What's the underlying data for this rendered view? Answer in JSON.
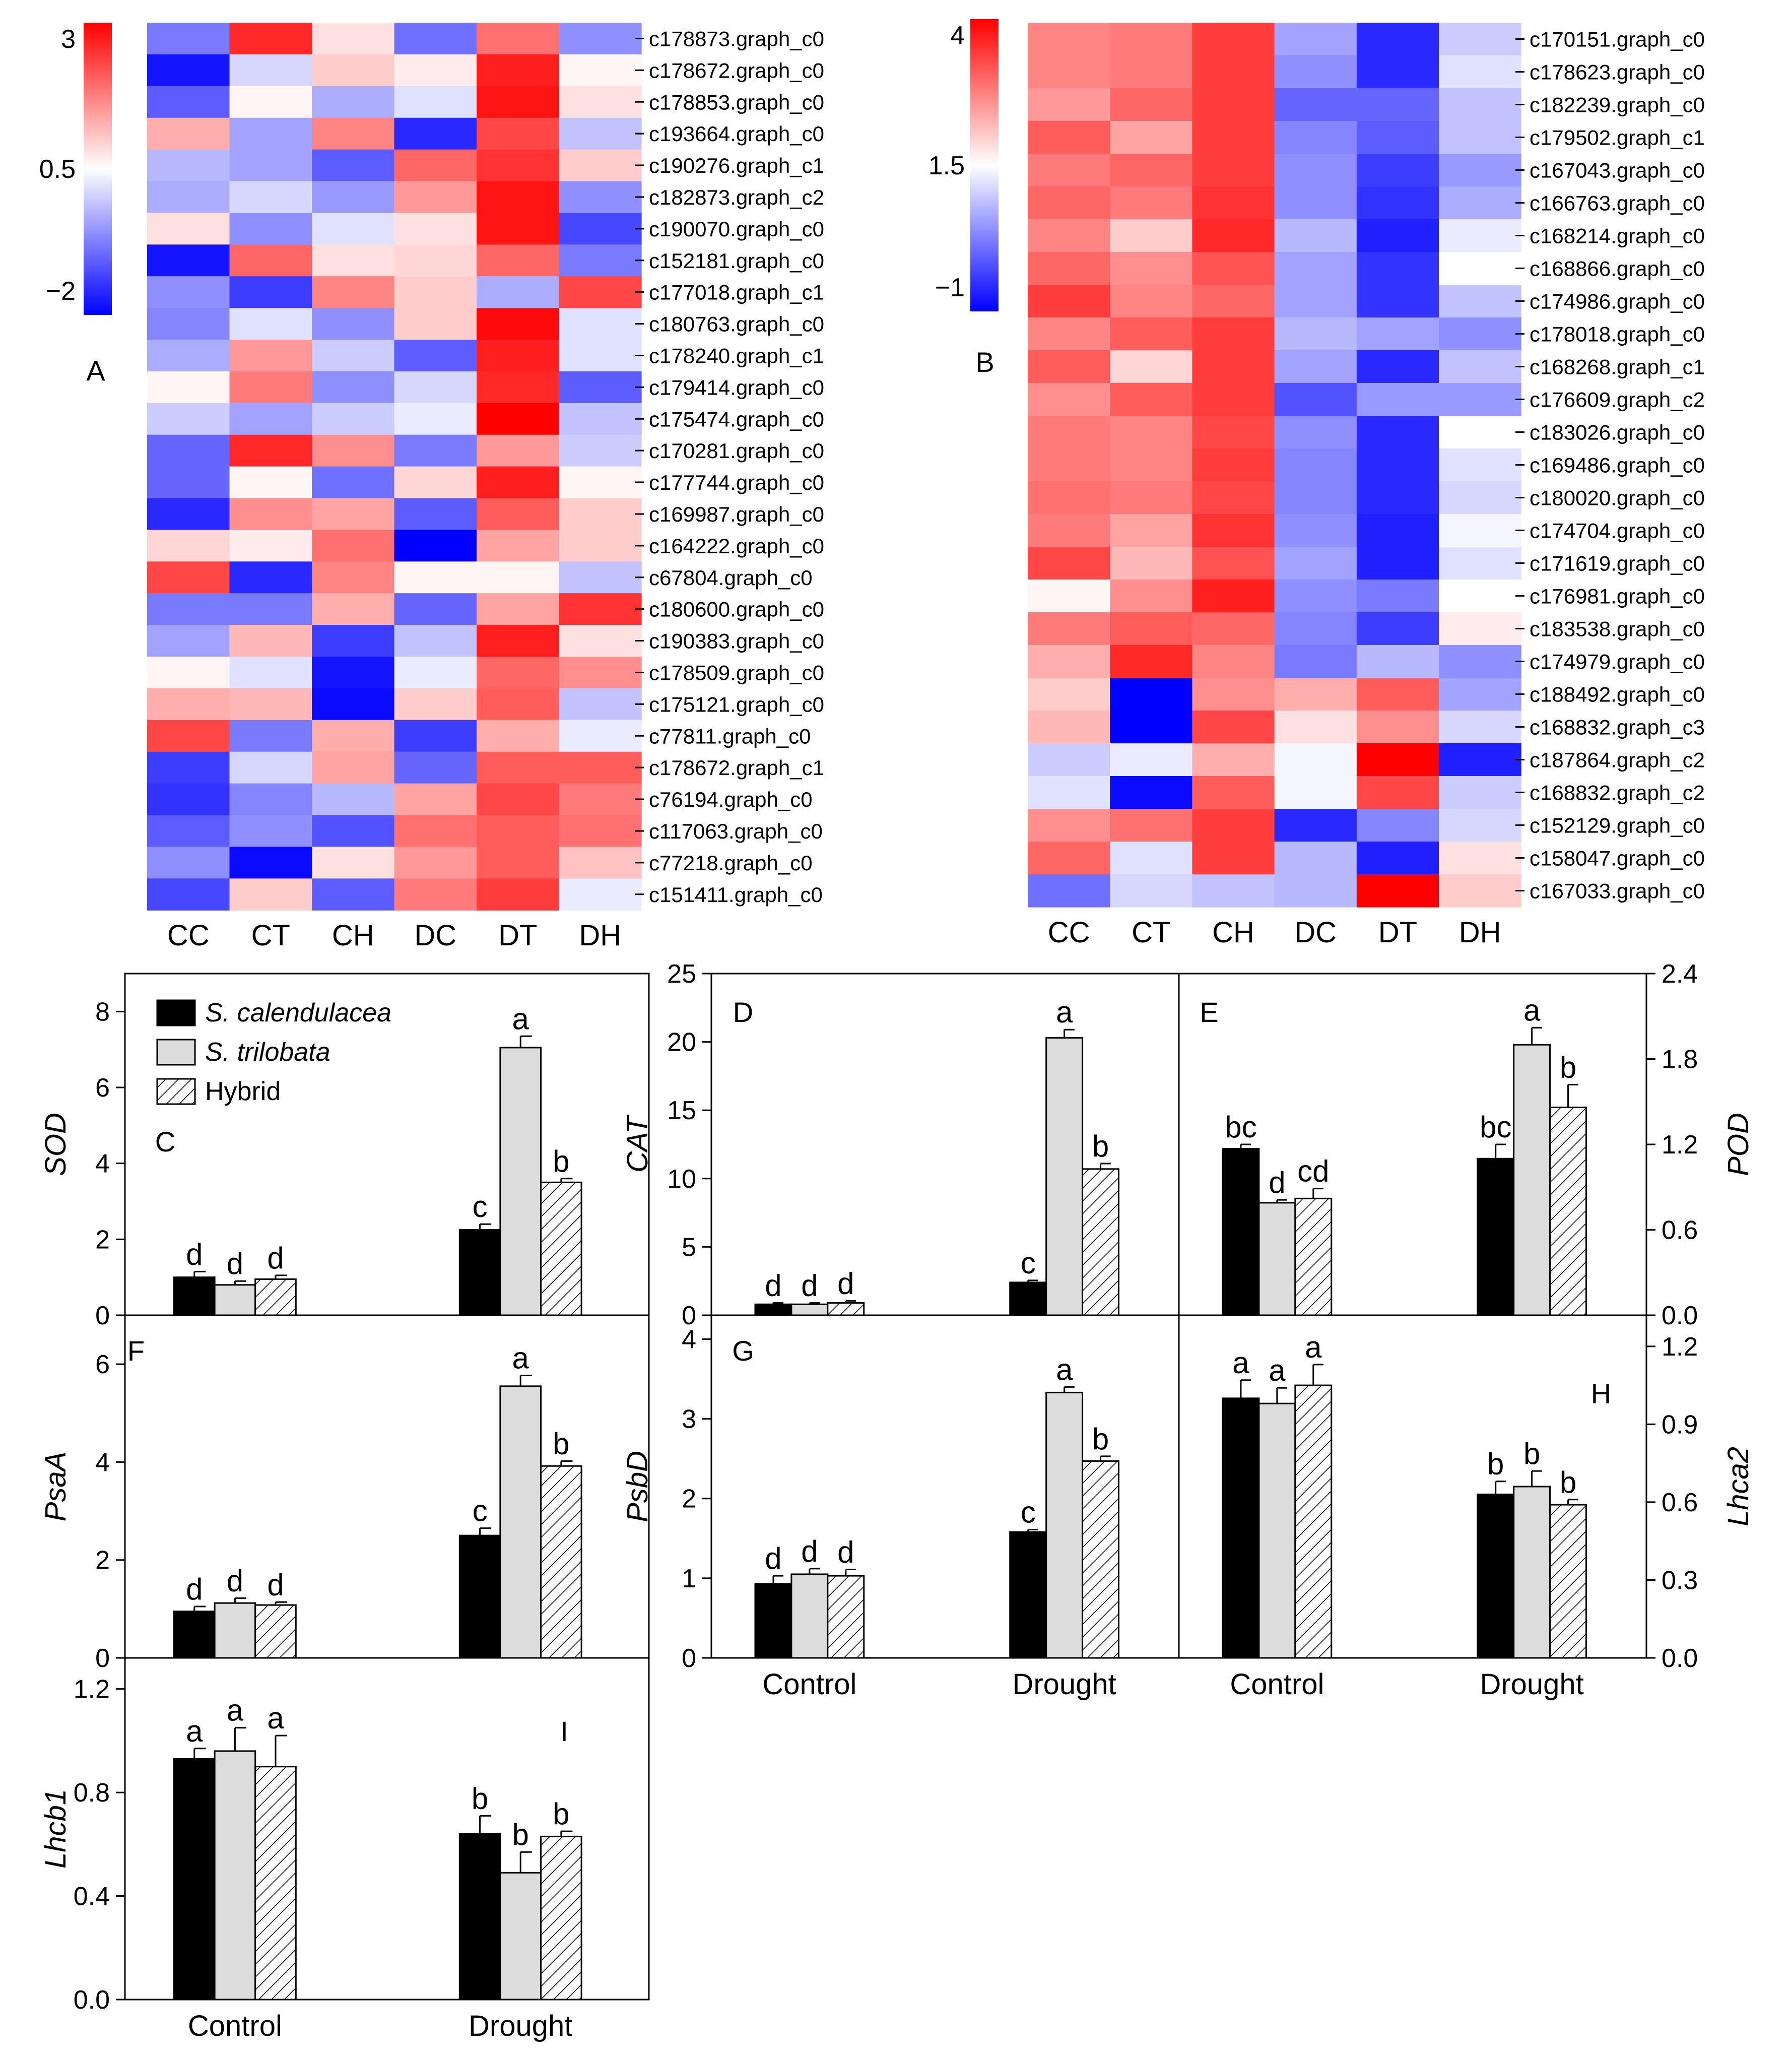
{
  "colors": {
    "low": "#0000ff",
    "mid": "#ffffff",
    "high": "#ff0000",
    "calendulacea": "#000000",
    "trilobata": "#dcdcdc",
    "hybrid": "#ffffff"
  },
  "legend": {
    "calendulacea": "S. calendulacea",
    "trilobata": "S. trilobata",
    "hybrid": "Hybrid"
  },
  "chart_data": [
    {
      "panel": "A",
      "type": "heatmap",
      "columns": [
        "CC",
        "CT",
        "CH",
        "DC",
        "DT",
        "DH"
      ],
      "scale": {
        "min": -2,
        "mid": 0.5,
        "max": 3,
        "ticks": [
          "3",
          "0.5",
          "−2"
        ]
      },
      "rows": [
        {
          "gene": "c178873.graph_c0",
          "values": [
            -0.8,
            2.6,
            0.8,
            -0.9,
            1.9,
            -0.6
          ]
        },
        {
          "gene": "c178672.graph_c0",
          "values": [
            -1.8,
            0.1,
            1.0,
            0.7,
            2.7,
            0.6
          ]
        },
        {
          "gene": "c178853.graph_c0",
          "values": [
            -1.1,
            0.6,
            -0.3,
            0.2,
            2.8,
            0.8
          ]
        },
        {
          "gene": "c193664.graph_c0",
          "values": [
            1.3,
            -0.4,
            1.7,
            -1.6,
            2.3,
            -0.1
          ]
        },
        {
          "gene": "c190276.graph_c1",
          "values": [
            -0.2,
            -0.4,
            -1.1,
            2.0,
            2.5,
            1.0
          ]
        },
        {
          "gene": "c182873.graph_c2",
          "values": [
            -0.3,
            0.1,
            -0.5,
            1.5,
            2.8,
            -0.6
          ]
        },
        {
          "gene": "c190070.graph_c0",
          "values": [
            0.8,
            -0.6,
            0.2,
            0.8,
            2.8,
            -1.3
          ]
        },
        {
          "gene": "c152181.graph_c0",
          "values": [
            -1.8,
            2.0,
            0.8,
            0.9,
            2.0,
            -0.8
          ]
        },
        {
          "gene": "c177018.graph_c1",
          "values": [
            -0.6,
            -1.4,
            1.7,
            1.0,
            -0.3,
            2.3
          ]
        },
        {
          "gene": "c180763.graph_c0",
          "values": [
            -0.7,
            0.2,
            -0.6,
            1.0,
            2.9,
            0.2
          ]
        },
        {
          "gene": "c178240.graph_c1",
          "values": [
            -0.3,
            1.5,
            0.0,
            -1.1,
            2.7,
            0.2
          ]
        },
        {
          "gene": "c179414.graph_c0",
          "values": [
            0.6,
            1.8,
            -0.6,
            0.1,
            2.6,
            -1.1
          ]
        },
        {
          "gene": "c175474.graph_c0",
          "values": [
            0.0,
            -0.4,
            0.0,
            0.3,
            3.0,
            -0.1
          ]
        },
        {
          "gene": "c170281.graph_c0",
          "values": [
            -1.0,
            2.6,
            1.6,
            -0.8,
            1.5,
            0.0
          ]
        },
        {
          "gene": "c177744.graph_c0",
          "values": [
            -1.0,
            0.6,
            -0.9,
            0.9,
            2.7,
            0.6
          ]
        },
        {
          "gene": "c169987.graph_c0",
          "values": [
            -1.6,
            1.6,
            1.4,
            -1.1,
            2.1,
            1.0
          ]
        },
        {
          "gene": "c164222.graph_c0",
          "values": [
            0.9,
            0.7,
            1.9,
            -2.0,
            1.4,
            1.0
          ]
        },
        {
          "gene": "c67804.graph_c0",
          "values": [
            2.3,
            -1.6,
            1.7,
            0.6,
            0.6,
            -0.1
          ]
        },
        {
          "gene": "c180600.graph_c0",
          "values": [
            -0.8,
            -0.8,
            1.3,
            -1.0,
            1.4,
            2.5
          ]
        },
        {
          "gene": "c190383.graph_c0",
          "values": [
            -0.4,
            1.2,
            -1.4,
            -0.1,
            2.7,
            0.8
          ]
        },
        {
          "gene": "c178509.graph_c0",
          "values": [
            0.6,
            0.2,
            -1.8,
            0.3,
            2.0,
            1.6
          ]
        },
        {
          "gene": "c175121.graph_c0",
          "values": [
            1.3,
            1.2,
            -1.9,
            1.0,
            2.1,
            -0.1
          ]
        },
        {
          "gene": "c77811.graph_c0",
          "values": [
            2.3,
            -0.8,
            1.3,
            -1.4,
            1.3,
            0.3
          ]
        },
        {
          "gene": "c178672.graph_c1",
          "values": [
            -1.4,
            0.1,
            1.4,
            -1.0,
            2.1,
            2.1
          ]
        },
        {
          "gene": "c76194.graph_c0",
          "values": [
            -1.5,
            -0.7,
            -0.2,
            1.4,
            2.3,
            1.8
          ]
        },
        {
          "gene": "c117063.graph_c0",
          "values": [
            -1.1,
            -0.6,
            -1.2,
            1.9,
            2.1,
            1.9
          ]
        },
        {
          "gene": "c77218.graph_c0",
          "values": [
            -0.6,
            -1.9,
            0.8,
            1.5,
            2.1,
            1.1
          ]
        },
        {
          "gene": "c151411.graph_c0",
          "values": [
            -1.3,
            1.0,
            -1.1,
            1.8,
            2.4,
            0.3
          ]
        }
      ]
    },
    {
      "panel": "B",
      "type": "heatmap",
      "columns": [
        "CC",
        "CT",
        "CH",
        "DC",
        "DT",
        "DH"
      ],
      "scale": {
        "min": -1,
        "mid": 1.5,
        "max": 4,
        "ticks": [
          "4",
          "1.5",
          "−1"
        ]
      },
      "rows": [
        {
          "gene": "c170151.graph_c0",
          "values": [
            2.7,
            2.8,
            3.4,
            0.6,
            -0.6,
            1.0
          ]
        },
        {
          "gene": "c178623.graph_c0",
          "values": [
            2.7,
            2.8,
            3.4,
            0.4,
            -0.6,
            1.2
          ]
        },
        {
          "gene": "c182239.graph_c0",
          "values": [
            2.5,
            3.0,
            3.4,
            0.0,
            0.0,
            0.9
          ]
        },
        {
          "gene": "c179502.graph_c1",
          "values": [
            3.1,
            2.4,
            3.4,
            0.3,
            -0.1,
            0.9
          ]
        },
        {
          "gene": "c167043.graph_c0",
          "values": [
            2.8,
            3.0,
            3.4,
            0.4,
            -0.4,
            0.5
          ]
        },
        {
          "gene": "c166763.graph_c0",
          "values": [
            3.0,
            2.8,
            3.5,
            0.4,
            -0.5,
            0.7
          ]
        },
        {
          "gene": "c168214.graph_c0",
          "values": [
            2.7,
            2.0,
            3.6,
            0.8,
            -0.7,
            1.3
          ]
        },
        {
          "gene": "c168866.graph_c0",
          "values": [
            3.0,
            2.6,
            3.2,
            0.6,
            -0.5,
            1.5
          ]
        },
        {
          "gene": "c174986.graph_c0",
          "values": [
            3.4,
            2.7,
            3.0,
            0.6,
            -0.5,
            0.9
          ]
        },
        {
          "gene": "c178018.graph_c0",
          "values": [
            2.7,
            3.1,
            3.4,
            0.8,
            0.6,
            0.4
          ]
        },
        {
          "gene": "c168268.graph_c1",
          "values": [
            3.1,
            1.9,
            3.4,
            0.6,
            -0.6,
            0.9
          ]
        },
        {
          "gene": "c176609.graph_c2",
          "values": [
            2.6,
            3.1,
            3.4,
            -0.2,
            0.5,
            0.5
          ]
        },
        {
          "gene": "c183026.graph_c0",
          "values": [
            2.8,
            2.7,
            3.3,
            0.4,
            -0.6,
            1.5
          ]
        },
        {
          "gene": "c169486.graph_c0",
          "values": [
            2.8,
            2.7,
            3.4,
            0.3,
            -0.6,
            1.2
          ]
        },
        {
          "gene": "c180020.graph_c0",
          "values": [
            2.9,
            2.8,
            3.3,
            0.3,
            -0.6,
            1.1
          ]
        },
        {
          "gene": "c174704.graph_c0",
          "values": [
            2.8,
            2.4,
            3.5,
            0.4,
            -0.7,
            1.4
          ]
        },
        {
          "gene": "c171619.graph_c0",
          "values": [
            3.3,
            2.2,
            3.2,
            0.6,
            -0.7,
            1.2
          ]
        },
        {
          "gene": "c176981.graph_c0",
          "values": [
            1.6,
            2.6,
            3.7,
            0.4,
            0.2,
            1.5
          ]
        },
        {
          "gene": "c183538.graph_c0",
          "values": [
            2.8,
            3.1,
            3.0,
            0.3,
            -0.4,
            1.7
          ]
        },
        {
          "gene": "c174979.graph_c0",
          "values": [
            2.3,
            3.6,
            2.7,
            0.2,
            0.8,
            0.4
          ]
        },
        {
          "gene": "c188492.graph_c0",
          "values": [
            2.0,
            -1.0,
            2.6,
            2.3,
            3.1,
            0.6
          ]
        },
        {
          "gene": "c168832.graph_c3",
          "values": [
            2.2,
            -1.0,
            3.3,
            1.8,
            2.6,
            1.1
          ]
        },
        {
          "gene": "c187864.graph_c2",
          "values": [
            1.0,
            1.3,
            2.3,
            1.4,
            4.0,
            -0.7
          ]
        },
        {
          "gene": "c168832.graph_c2",
          "values": [
            1.2,
            -0.9,
            3.1,
            1.4,
            3.3,
            1.0
          ]
        },
        {
          "gene": "c152129.graph_c0",
          "values": [
            2.6,
            2.9,
            3.4,
            -0.6,
            0.3,
            1.1
          ]
        },
        {
          "gene": "c158047.graph_c0",
          "values": [
            3.0,
            1.2,
            3.4,
            0.8,
            -0.7,
            1.8
          ]
        },
        {
          "gene": "c167033.graph_c0",
          "values": [
            0.1,
            1.1,
            0.9,
            0.8,
            4.0,
            2.0
          ]
        }
      ]
    },
    {
      "panel": "C",
      "type": "bar",
      "ylabel": "SOD",
      "categories": [
        "Control",
        "Drought"
      ],
      "ylim": [
        0,
        9
      ],
      "yticks": [
        0,
        2,
        4,
        6,
        8
      ],
      "series": [
        {
          "name": "S. calendulacea",
          "values": [
            1.0,
            2.25
          ],
          "errors": [
            0.15,
            0.15
          ],
          "letters": [
            "d",
            "c"
          ]
        },
        {
          "name": "S. trilobata",
          "values": [
            0.8,
            7.05
          ],
          "errors": [
            0.1,
            0.3
          ],
          "letters": [
            "d",
            "a"
          ]
        },
        {
          "name": "Hybrid",
          "values": [
            0.95,
            3.5
          ],
          "errors": [
            0.1,
            0.1
          ],
          "letters": [
            "d",
            "b"
          ]
        }
      ]
    },
    {
      "panel": "D",
      "type": "bar",
      "ylabel": "CAT",
      "categories": [
        "Control",
        "Drought"
      ],
      "ylim": [
        0,
        25
      ],
      "yticks": [
        0,
        5,
        10,
        15,
        20,
        25
      ],
      "series": [
        {
          "name": "S. calendulacea",
          "values": [
            0.8,
            2.4
          ],
          "errors": [
            0.1,
            0.15
          ],
          "letters": [
            "d",
            "c"
          ]
        },
        {
          "name": "S. trilobata",
          "values": [
            0.8,
            20.3
          ],
          "errors": [
            0.1,
            0.6
          ],
          "letters": [
            "d",
            "a"
          ]
        },
        {
          "name": "Hybrid",
          "values": [
            0.9,
            10.7
          ],
          "errors": [
            0.15,
            0.4
          ],
          "letters": [
            "d",
            "b"
          ]
        }
      ]
    },
    {
      "panel": "E",
      "type": "bar",
      "ylabel": "POD",
      "categories": [
        "Control",
        "Drought"
      ],
      "ylim": [
        0,
        2.4
      ],
      "yticks": [
        "0.0",
        "0.6",
        "1.2",
        "1.8",
        "2.4"
      ],
      "series": [
        {
          "name": "S. calendulacea",
          "values": [
            1.17,
            1.1
          ],
          "errors": [
            0.03,
            0.1
          ],
          "letters": [
            "bc",
            "bc"
          ]
        },
        {
          "name": "S. trilobata",
          "values": [
            0.79,
            1.9
          ],
          "errors": [
            0.02,
            0.12
          ],
          "letters": [
            "d",
            "a"
          ]
        },
        {
          "name": "Hybrid",
          "values": [
            0.82,
            1.46
          ],
          "errors": [
            0.07,
            0.16
          ],
          "letters": [
            "cd",
            "b"
          ]
        }
      ]
    },
    {
      "panel": "F",
      "type": "bar",
      "ylabel": "PsaA",
      "categories": [
        "Control",
        "Drought"
      ],
      "ylim": [
        0,
        7
      ],
      "yticks": [
        0,
        2,
        4,
        6
      ],
      "series": [
        {
          "name": "S. calendulacea",
          "values": [
            0.95,
            2.5
          ],
          "errors": [
            0.1,
            0.15
          ],
          "letters": [
            "d",
            "c"
          ]
        },
        {
          "name": "S. trilobata",
          "values": [
            1.12,
            5.55
          ],
          "errors": [
            0.1,
            0.22
          ],
          "letters": [
            "d",
            "a"
          ]
        },
        {
          "name": "Hybrid",
          "values": [
            1.08,
            3.92
          ],
          "errors": [
            0.06,
            0.1
          ],
          "letters": [
            "d",
            "b"
          ]
        }
      ]
    },
    {
      "panel": "G",
      "type": "bar",
      "ylabel": "PsbD",
      "categories": [
        "Control",
        "Drought"
      ],
      "ylim": [
        0,
        4.3
      ],
      "yticks": [
        0,
        1,
        2,
        3,
        4
      ],
      "series": [
        {
          "name": "S. calendulacea",
          "values": [
            0.93,
            1.58
          ],
          "errors": [
            0.1,
            0.03
          ],
          "letters": [
            "d",
            "c"
          ]
        },
        {
          "name": "S. trilobata",
          "values": [
            1.05,
            3.33
          ],
          "errors": [
            0.07,
            0.07
          ],
          "letters": [
            "d",
            "a"
          ]
        },
        {
          "name": "Hybrid",
          "values": [
            1.03,
            2.47
          ],
          "errors": [
            0.08,
            0.06
          ],
          "letters": [
            "d",
            "b"
          ]
        }
      ]
    },
    {
      "panel": "H",
      "type": "bar",
      "ylabel": "Lhca2",
      "categories": [
        "Control",
        "Drought"
      ],
      "ylim": [
        0,
        1.32
      ],
      "yticks": [
        "0.0",
        "0.3",
        "0.6",
        "0.9",
        "1.2"
      ],
      "series": [
        {
          "name": "S. calendulacea",
          "values": [
            1.0,
            0.63
          ],
          "errors": [
            0.07,
            0.05
          ],
          "letters": [
            "a",
            "b"
          ]
        },
        {
          "name": "S. trilobata",
          "values": [
            0.98,
            0.66
          ],
          "errors": [
            0.06,
            0.06
          ],
          "letters": [
            "a",
            "b"
          ]
        },
        {
          "name": "Hybrid",
          "values": [
            1.05,
            0.59
          ],
          "errors": [
            0.08,
            0.02
          ],
          "letters": [
            "a",
            "b"
          ]
        }
      ]
    },
    {
      "panel": "I",
      "type": "bar",
      "ylabel": "Lhcb1",
      "categories": [
        "Control",
        "Drought"
      ],
      "ylim": [
        0,
        1.32
      ],
      "yticks": [
        "0.0",
        "0.4",
        "0.8",
        "1.2"
      ],
      "series": [
        {
          "name": "S. calendulacea",
          "values": [
            0.93,
            0.64
          ],
          "errors": [
            0.04,
            0.07
          ],
          "letters": [
            "a",
            "b"
          ]
        },
        {
          "name": "S. trilobata",
          "values": [
            0.96,
            0.49
          ],
          "errors": [
            0.09,
            0.08
          ],
          "letters": [
            "a",
            "b"
          ]
        },
        {
          "name": "Hybrid",
          "values": [
            0.9,
            0.63
          ],
          "errors": [
            0.12,
            0.02
          ],
          "letters": [
            "a",
            "b"
          ]
        }
      ]
    }
  ]
}
